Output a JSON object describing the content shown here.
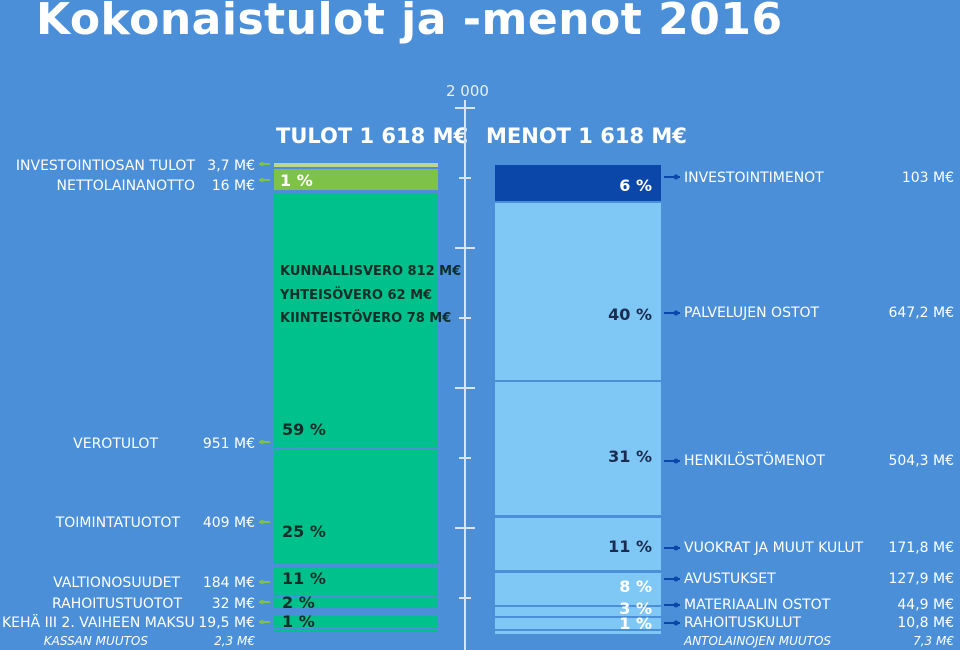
{
  "title": "Kokonaistulot ja -menot 2016",
  "scale_label": "2 000",
  "income_header": "TULOT  1 618 M€",
  "expense_header": "MENOT 1 618 M€",
  "tax_breakdown": [
    "KUNNALLISVERO 812 M€",
    "YHTEISÖVERO 62 M€",
    "KIINTEISTÖVERO 78 M€"
  ],
  "colors": {
    "background": "#4a8fd8",
    "income_main": "#00c08b",
    "income_light": "#7fc24a",
    "expense_main": "#7fc8f5",
    "expense_dark": "#0a47a9"
  },
  "chart_data": [
    {
      "type": "bar",
      "title": "TULOT  1 618 M€",
      "ylim": [
        0,
        2000
      ],
      "stacked": true,
      "segments": [
        {
          "name": "INVESTOINTIOSAN TULOT",
          "value_label": "3,7 M€",
          "value": 3.7,
          "pct": ""
        },
        {
          "name": "NETTOLAINANOTTO",
          "value_label": "16 M€",
          "value": 16,
          "pct": "1 %"
        },
        {
          "name": "VEROTULOT",
          "value_label": "951 M€",
          "value": 951,
          "pct": "59 %"
        },
        {
          "name": "TOIMINTATUOTOT",
          "value_label": "409 M€",
          "value": 409,
          "pct": "25 %"
        },
        {
          "name": "VALTIONOSUUDET",
          "value_label": "184 M€",
          "value": 184,
          "pct": "11 %"
        },
        {
          "name": "RAHOITUSTUOTOT",
          "value_label": "32 M€",
          "value": 32,
          "pct": "2  %"
        },
        {
          "name": "KEHÄ III 2. VAIHEEN MAKSU",
          "value_label": "19,5 M€",
          "value": 19.5,
          "pct": "1 %"
        },
        {
          "name": "KASSAN MUUTOS",
          "value_label": "2,3 M€",
          "value": 2.3,
          "pct": ""
        }
      ]
    },
    {
      "type": "bar",
      "title": "MENOT 1 618 M€",
      "ylim": [
        0,
        2000
      ],
      "stacked": true,
      "segments": [
        {
          "name": "INVESTOINTIMENOT",
          "value_label": "103 M€",
          "value": 103,
          "pct": "6 %"
        },
        {
          "name": "PALVELUJEN OSTOT",
          "value_label": "647,2 M€",
          "value": 647.2,
          "pct": "40 %"
        },
        {
          "name": "HENKILÖSTÖMENOT",
          "value_label": "504,3 M€",
          "value": 504.3,
          "pct": "31 %"
        },
        {
          "name": "VUOKRAT JA MUUT KULUT",
          "value_label": "171,8 M€",
          "value": 171.8,
          "pct": "11 %"
        },
        {
          "name": "AVUSTUKSET",
          "value_label": "127,9 M€",
          "value": 127.9,
          "pct": "8 %"
        },
        {
          "name": "MATERIAALIN OSTOT",
          "value_label": "44,9 M€",
          "value": 44.9,
          "pct": "3 %"
        },
        {
          "name": "RAHOITUSKULUT",
          "value_label": "10,8 M€",
          "value": 10.8,
          "pct": "1 %"
        },
        {
          "name": "ANTOLAINOJEN MUUTOS",
          "value_label": "7,3 M€",
          "value": 7.3,
          "pct": ""
        }
      ]
    }
  ]
}
